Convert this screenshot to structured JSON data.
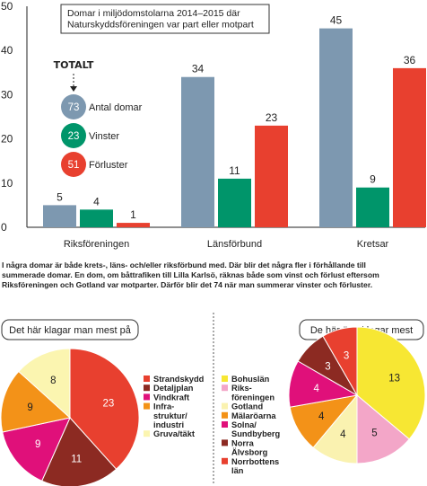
{
  "bar_chart": {
    "title": "Domar i miljödomstolarna 2014–2015 där Naturskyddsföreningen var part eller motpart",
    "title_lines": [
      "Domar i miljödomstolarna 2014–2015 där",
      "Naturskyddsföreningen var part eller motpart"
    ],
    "legend": {
      "header": "TOTALT",
      "items": [
        {
          "value": "73",
          "label": "Antal domar",
          "color": "#7d98b0"
        },
        {
          "value": "23",
          "label": "Vinster",
          "color": "#00956a"
        },
        {
          "value": "51",
          "label": "Förluster",
          "color": "#e8402f"
        }
      ]
    }
  },
  "note_lines": [
    "I några domar är både krets-,  läns- och/eller riksförbund med. Där blir det några fler i förhållande till",
    "summerade domar. En dom, om båttrafiken till Lilla Karlsö, räknas både som vinst och förlust eftersom",
    "Riksföreningen och Gotland var motparter. Därför blir det 74 när man summerar vinster och förluster."
  ],
  "chart_data": [
    {
      "type": "bar",
      "title": "Domar i miljödomstolarna 2014–2015 där Naturskyddsföreningen var part eller motpart",
      "categories": [
        "Riksföreningen",
        "Länsförbund",
        "Kretsar"
      ],
      "series": [
        {
          "name": "Antal domar",
          "color": "#7d98b0",
          "values": [
            5,
            34,
            45
          ]
        },
        {
          "name": "Vinster",
          "color": "#00956a",
          "values": [
            4,
            11,
            9
          ]
        },
        {
          "name": "Förluster",
          "color": "#e8402f",
          "values": [
            1,
            23,
            36
          ]
        }
      ],
      "yticks": [
        "0",
        "10",
        "20",
        "30",
        "40",
        "50"
      ],
      "ylim": [
        0,
        50
      ],
      "grid": false
    },
    {
      "type": "pie",
      "title": "Det här klagar man mest på",
      "slices": [
        {
          "label": "Strandskydd",
          "value": 23,
          "color": "#e8402f"
        },
        {
          "label": "Detaljplan",
          "value": 11,
          "color": "#8c2a22"
        },
        {
          "label": "Vindkraft",
          "value": 9,
          "color": "#e0107a"
        },
        {
          "label": "Infra-\nstruktur/\nindustri",
          "value": 9,
          "color": "#f39218"
        },
        {
          "label": "Gruva/täkt",
          "value": 8,
          "color": "#fbf5b0"
        }
      ]
    },
    {
      "type": "pie",
      "title": "De här överklagar mest",
      "slices": [
        {
          "label": "Bohuslän",
          "value": 13,
          "color": "#f7e733"
        },
        {
          "label": "Riks-\nföreningen",
          "value": 5,
          "color": "#f3a6c8"
        },
        {
          "label": "Gotland",
          "value": 4,
          "color": "#faf2b0"
        },
        {
          "label": "Mälaröarna",
          "value": 4,
          "color": "#f39218"
        },
        {
          "label": "Solna/\nSundbyberg",
          "value": 4,
          "color": "#e0107a"
        },
        {
          "label": "Norra\nÄlvsborg",
          "value": 3,
          "color": "#8c2a22"
        },
        {
          "label": "Norrbottens\nlän",
          "value": 3,
          "color": "#e8402f"
        }
      ]
    }
  ]
}
